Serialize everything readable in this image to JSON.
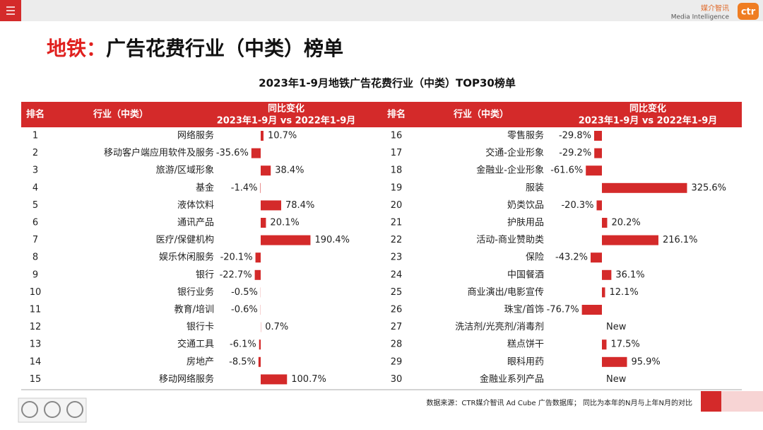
{
  "header": {
    "title_prefix": "地铁：",
    "title": "广告花费行业（中类）榜单",
    "logo_cn": "媒介智讯",
    "logo_en": "Media Intelligence",
    "logo_mark": "ctr"
  },
  "chart_data": {
    "type": "bar",
    "title": "2023年1-9月地铁广告花费行业（中类）TOP30榜单",
    "columns": [
      "排名",
      "行业（中类）",
      "同比变化",
      "2023年1-9月 vs 2022年1-9月"
    ],
    "ranks": [
      1,
      2,
      3,
      4,
      5,
      6,
      7,
      8,
      9,
      10,
      11,
      12,
      13,
      14,
      15,
      16,
      17,
      18,
      19,
      20,
      21,
      22,
      23,
      24,
      25,
      26,
      27,
      28,
      29,
      30
    ],
    "categories": [
      "网络服务",
      "移动客户端应用软件及服务",
      "旅游/区域形象",
      "基金",
      "液体饮料",
      "通讯产品",
      "医疗/保健机构",
      "娱乐休闲服务",
      "银行",
      "银行业务",
      "教育/培训",
      "银行卡",
      "交通工具",
      "房地产",
      "移动网络服务",
      "零售服务",
      "交通-企业形象",
      "金融业-企业形象",
      "服装",
      "奶类饮品",
      "护肤用品",
      "活动-商业赞助类",
      "保险",
      "中国餐酒",
      "商业演出/电影宣传",
      "珠宝/首饰",
      "洗洁剂/光亮剂/消毒剂",
      "糕点饼干",
      "眼科用药",
      "金融业系列产品"
    ],
    "values": [
      10.7,
      -35.6,
      38.4,
      -1.4,
      78.4,
      20.1,
      190.4,
      -20.1,
      -22.7,
      -0.5,
      -0.6,
      0.7,
      -6.1,
      -8.5,
      100.7,
      -29.8,
      -29.2,
      -61.6,
      325.6,
      -20.3,
      20.2,
      216.1,
      -43.2,
      36.1,
      12.1,
      -76.7,
      null,
      17.5,
      95.9,
      null
    ],
    "value_labels": [
      "10.7%",
      "-35.6%",
      "38.4%",
      "-1.4%",
      "78.4%",
      "20.1%",
      "190.4%",
      "-20.1%",
      "-22.7%",
      "-0.5%",
      "-0.6%",
      "0.7%",
      "-6.1%",
      "-8.5%",
      "100.7%",
      "-29.8%",
      "-29.2%",
      "-61.6%",
      "325.6%",
      "-20.3%",
      "20.2%",
      "216.1%",
      "-43.2%",
      "36.1%",
      "12.1%",
      "-76.7%",
      "New",
      "17.5%",
      "95.9%",
      "New"
    ],
    "color": "#d42a2a"
  },
  "footer": {
    "source": "数据来源：CTR媒介智讯 Ad Cube 广告数据库；  同比为本年的N月与上年N月的对比"
  }
}
